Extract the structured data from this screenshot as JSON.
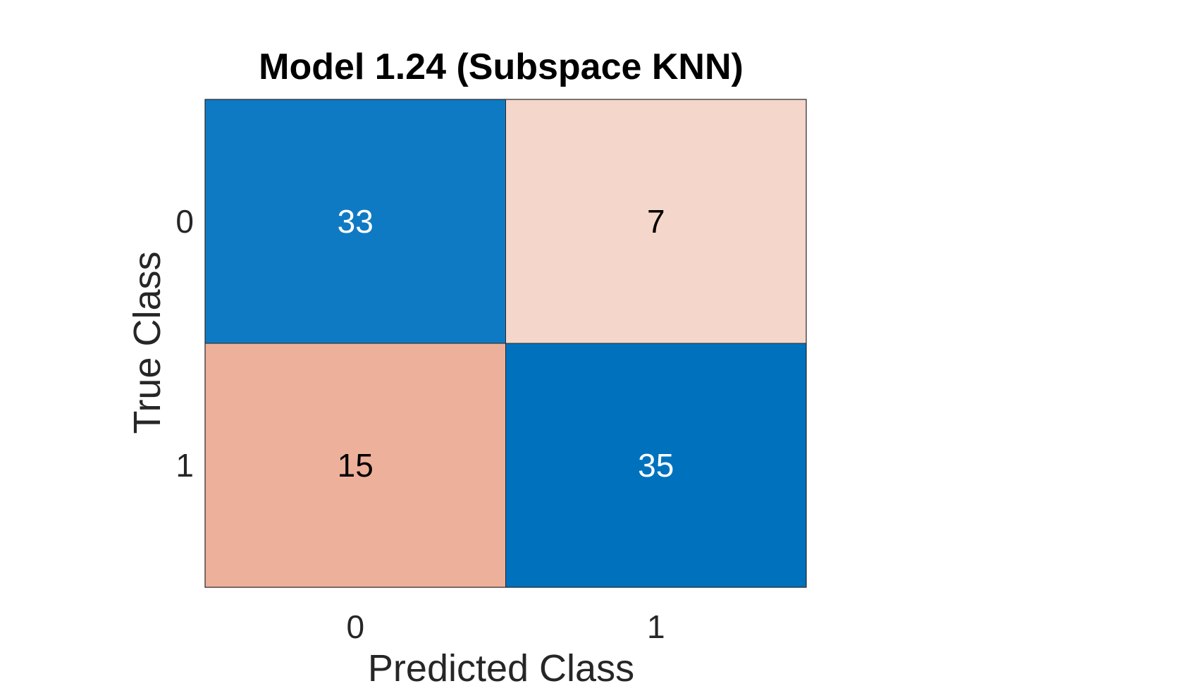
{
  "chart_data": {
    "type": "heatmap",
    "title": "Model 1.24 (Subspace KNN)",
    "xlabel": "Predicted Class",
    "ylabel": "True Class",
    "x_categories": [
      "0",
      "1"
    ],
    "y_categories": [
      "0",
      "1"
    ],
    "values": [
      [
        33,
        7
      ],
      [
        15,
        35
      ]
    ],
    "colors": {
      "diagonal_high": "#0072bd",
      "diagonal_low": "#0f7ac4",
      "offdiag_high": "#edb09a",
      "offdiag_low": "#f5d6cb",
      "grid_line": "#262626",
      "text_dark": "#000000",
      "text_light": "#ffffff"
    },
    "grid": true,
    "legend": "none"
  }
}
